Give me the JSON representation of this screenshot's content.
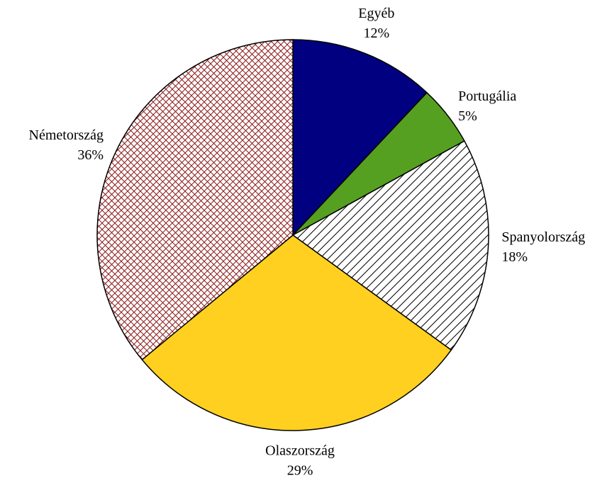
{
  "chart_data": {
    "type": "pie",
    "categories": [
      "Egyéb",
      "Portugália",
      "Spanyolország",
      "Olaszország",
      "Németország"
    ],
    "values": [
      12,
      5,
      18,
      29,
      36
    ],
    "value_labels": [
      "12%",
      "5%",
      "18%",
      "29%",
      "36%"
    ],
    "colors": [
      "#000080",
      "#55a020",
      "#000000",
      "#ffd020",
      "#8b1a1a"
    ],
    "patterns": [
      "solid",
      "solid",
      "diagonal",
      "solid",
      "crosshatch"
    ]
  }
}
